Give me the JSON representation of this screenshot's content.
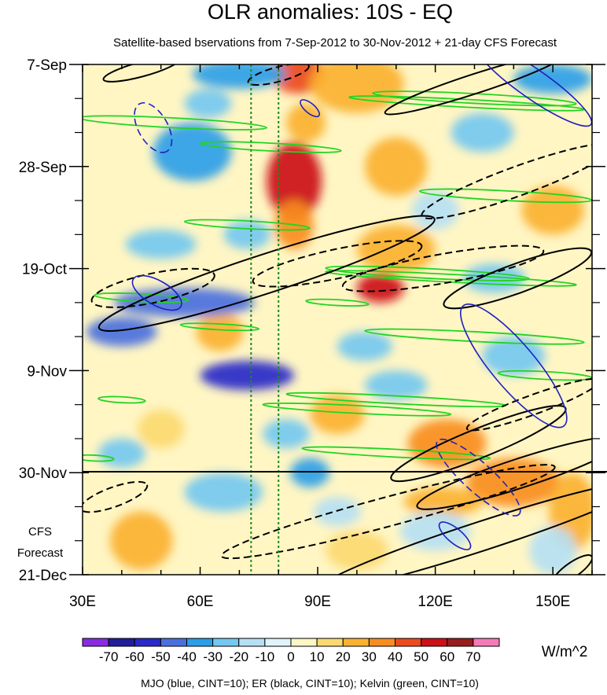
{
  "chart_data": {
    "type": "heatmap",
    "title": "OLR anomalies: 10S - EQ",
    "subtitle": "Satellite-based bservations from 7-Sep-2012 to 30-Nov-2012 + 21-day CFS Forecast",
    "x_range": [
      30,
      160
    ],
    "x_ticks": [
      {
        "value": 30,
        "label": "30E"
      },
      {
        "value": 60,
        "label": "60E"
      },
      {
        "value": 90,
        "label": "90E"
      },
      {
        "value": 120,
        "label": "120E"
      },
      {
        "value": 150,
        "label": "150E"
      }
    ],
    "y_range_days": [
      0,
      105
    ],
    "y_ticks": [
      {
        "day": 0,
        "label": "7-Sep"
      },
      {
        "day": 21,
        "label": "28-Sep"
      },
      {
        "day": 42,
        "label": "19-Oct"
      },
      {
        "day": 63,
        "label": "9-Nov"
      },
      {
        "day": 84,
        "label": "30-Nov"
      },
      {
        "day": 105,
        "label": "21-Dec"
      }
    ],
    "forecast_start_day": 84,
    "forecast_label": [
      "CFS",
      "Forecast"
    ],
    "reference_longitudes": [
      73,
      80
    ],
    "units": "W/m^2",
    "colorbar": {
      "levels": [
        -70,
        -60,
        -50,
        -40,
        -30,
        -20,
        -10,
        0,
        10,
        20,
        30,
        40,
        50,
        60,
        70
      ],
      "labels": [
        "-70",
        "-60",
        "-50",
        "-40",
        "-30",
        "-20",
        "-10",
        "0",
        "10",
        "20",
        "30",
        "40",
        "50",
        "60",
        "70"
      ],
      "colors": [
        "#8a2be2",
        "#1f1f9a",
        "#2929c9",
        "#4a6fdd",
        "#2a9ee8",
        "#74c8f0",
        "#b6dff3",
        "#dff4f9",
        "#fff6c4",
        "#fcd970",
        "#fbb130",
        "#f98d1f",
        "#ec4a1e",
        "#cc1118",
        "#9a1d1d",
        "#f57ab9"
      ]
    },
    "contour_legend": "MJO (blue, CINT=10); ER (black, CINT=10); Kelvin (green, CINT=10)",
    "anomaly_features": [
      {
        "lon": 85,
        "day": 2,
        "rlon": 7,
        "rday": 4,
        "value": 45
      },
      {
        "lon": 84,
        "day": 24,
        "rlon": 7,
        "rday": 8,
        "value": 58
      },
      {
        "lon": 87,
        "day": 12,
        "rlon": 5,
        "rday": 4,
        "value": 28
      },
      {
        "lon": 84,
        "day": 33,
        "rlon": 5,
        "rday": 5,
        "value": 38
      },
      {
        "lon": 106,
        "day": 46,
        "rlon": 6,
        "rday": 3,
        "value": 55
      },
      {
        "lon": 100,
        "day": 4,
        "rlon": 12,
        "rday": 6,
        "value": 26
      },
      {
        "lon": 123,
        "day": 78,
        "rlon": 10,
        "rday": 5,
        "value": 32
      },
      {
        "lon": 140,
        "day": 86,
        "rlon": 12,
        "rday": 5,
        "value": 30
      },
      {
        "lon": 155,
        "day": 92,
        "rlon": 6,
        "rday": 8,
        "value": 26
      },
      {
        "lon": 122,
        "day": 90,
        "rlon": 10,
        "rday": 3,
        "value": 26
      },
      {
        "lon": 110,
        "day": 21,
        "rlon": 8,
        "rday": 6,
        "value": 20
      },
      {
        "lon": 110,
        "day": 38,
        "rlon": 10,
        "rday": 5,
        "value": 22
      },
      {
        "lon": 65,
        "day": 55,
        "rlon": 6,
        "rday": 4,
        "value": 24
      },
      {
        "lon": 95,
        "day": 72,
        "rlon": 7,
        "rday": 4,
        "value": 20
      },
      {
        "lon": 45,
        "day": 98,
        "rlon": 8,
        "rday": 6,
        "value": 20
      },
      {
        "lon": 150,
        "day": 30,
        "rlon": 8,
        "rday": 5,
        "value": 20
      },
      {
        "lon": 100,
        "day": 100,
        "rlon": 8,
        "rday": 4,
        "value": 15
      },
      {
        "lon": 50,
        "day": 75,
        "rlon": 6,
        "rday": 4,
        "value": 18
      },
      {
        "lon": 56,
        "day": 49,
        "rlon": 18,
        "rday": 3,
        "value": -48
      },
      {
        "lon": 72,
        "day": 64,
        "rlon": 12,
        "rday": 3,
        "value": -52
      },
      {
        "lon": 40,
        "day": 55,
        "rlon": 9,
        "rday": 3,
        "value": -45
      },
      {
        "lon": 58,
        "day": 18,
        "rlon": 10,
        "rday": 6,
        "value": -35
      },
      {
        "lon": 70,
        "day": 2,
        "rlon": 12,
        "rday": 3,
        "value": -40
      },
      {
        "lon": 150,
        "day": 3,
        "rlon": 10,
        "rday": 3,
        "value": -35
      },
      {
        "lon": 50,
        "day": 37,
        "rlon": 9,
        "rday": 3,
        "value": -30
      },
      {
        "lon": 88,
        "day": 84,
        "rlon": 5,
        "rday": 3,
        "value": -40
      },
      {
        "lon": 110,
        "day": 66,
        "rlon": 8,
        "rday": 3,
        "value": -30
      },
      {
        "lon": 140,
        "day": 60,
        "rlon": 8,
        "rday": 4,
        "value": -30
      },
      {
        "lon": 66,
        "day": 88,
        "rlon": 10,
        "rday": 4,
        "value": -30
      },
      {
        "lon": 40,
        "day": 80,
        "rlon": 6,
        "rday": 3,
        "value": -30
      },
      {
        "lon": 72,
        "day": 35,
        "rlon": 6,
        "rday": 3,
        "value": -25
      },
      {
        "lon": 132,
        "day": 14,
        "rlon": 8,
        "rday": 4,
        "value": -25
      },
      {
        "lon": 135,
        "day": 44,
        "rlon": 8,
        "rday": 3,
        "value": -25
      },
      {
        "lon": 102,
        "day": 58,
        "rlon": 7,
        "rday": 3,
        "value": -22
      },
      {
        "lon": 82,
        "day": 76,
        "rlon": 6,
        "rday": 3,
        "value": -22
      },
      {
        "lon": 150,
        "day": 100,
        "rlon": 6,
        "rday": 5,
        "value": -20
      },
      {
        "lon": 120,
        "day": 96,
        "rlon": 9,
        "rday": 4,
        "value": -18
      },
      {
        "lon": 95,
        "day": 92,
        "rlon": 6,
        "rday": 3,
        "value": -20
      },
      {
        "lon": 120,
        "day": 30,
        "rlon": 6,
        "rday": 4,
        "value": -18
      },
      {
        "lon": 62,
        "day": 8,
        "rlon": 6,
        "rday": 3,
        "value": -25
      }
    ],
    "mjo_contours": [
      {
        "style": "dashed",
        "center": [
          48,
          13
        ],
        "radii": [
          7,
          3
        ],
        "angle": 60
      },
      {
        "style": "solid",
        "center": [
          49,
          47
        ],
        "radii": [
          7,
          2.5
        ],
        "angle": 30
      },
      {
        "style": "solid",
        "center": [
          140,
          62
        ],
        "radii": [
          20,
          4.5
        ],
        "angle": 50
      },
      {
        "style": "dashed",
        "center": [
          131,
          85
        ],
        "radii": [
          14,
          3
        ],
        "angle": 42
      },
      {
        "style": "solid",
        "center": [
          125,
          97
        ],
        "radii": [
          5,
          1.5
        ],
        "angle": 40
      },
      {
        "style": "solid",
        "center": [
          88,
          9
        ],
        "radii": [
          3,
          1
        ],
        "angle": 40
      },
      {
        "style": "solid",
        "center": [
          145,
          4
        ],
        "radii": [
          18,
          3
        ],
        "angle": 35
      }
    ],
    "er_contours": [
      {
        "style": "solid",
        "center": [
          77,
          43
        ],
        "radii": [
          45,
          4
        ],
        "angle": -18
      },
      {
        "style": "dashed",
        "center": [
          48,
          46
        ],
        "radii": [
          16,
          3
        ],
        "angle": -12
      },
      {
        "style": "dashed",
        "center": [
          95,
          41
        ],
        "radii": [
          22,
          3
        ],
        "angle": -12
      },
      {
        "style": "dashed",
        "center": [
          122,
          42
        ],
        "radii": [
          26,
          3
        ],
        "angle": -10
      },
      {
        "style": "solid",
        "center": [
          141,
          44
        ],
        "radii": [
          20,
          3
        ],
        "angle": -20
      },
      {
        "style": "dashed",
        "center": [
          141,
          24
        ],
        "radii": [
          26,
          3
        ],
        "angle": -20
      },
      {
        "style": "solid",
        "center": [
          131,
          78
        ],
        "radii": [
          24,
          3
        ],
        "angle": -22
      },
      {
        "style": "solid",
        "center": [
          142,
          84
        ],
        "radii": [
          28,
          3
        ],
        "angle": -18
      },
      {
        "style": "dashed",
        "center": [
          108,
          92
        ],
        "radii": [
          44,
          3
        ],
        "angle": -15
      },
      {
        "style": "solid",
        "center": [
          132,
          97
        ],
        "radii": [
          44,
          3
        ],
        "angle": -18
      },
      {
        "style": "dashed",
        "center": [
          38,
          89
        ],
        "radii": [
          9,
          2
        ],
        "angle": -20
      },
      {
        "style": "solid",
        "center": [
          155,
          104
        ],
        "radii": [
          6,
          1.5
        ],
        "angle": -35
      },
      {
        "style": "solid",
        "center": [
          130,
          4
        ],
        "radii": [
          24,
          2
        ],
        "angle": -18
      },
      {
        "style": "solid",
        "center": [
          45,
          1
        ],
        "radii": [
          10,
          1.5
        ],
        "angle": -15
      },
      {
        "style": "dashed",
        "center": [
          80,
          2
        ],
        "radii": [
          8,
          1.5
        ],
        "angle": -15
      },
      {
        "style": "dashed",
        "center": [
          145,
          70
        ],
        "radii": [
          18,
          2
        ],
        "angle": -20
      }
    ],
    "kelvin_contours": [
      {
        "center": [
          53,
          12
        ],
        "radii": [
          24,
          1
        ],
        "angle": 3
      },
      {
        "center": [
          78,
          17
        ],
        "radii": [
          18,
          0.8
        ],
        "angle": 3
      },
      {
        "center": [
          130,
          7
        ],
        "radii": [
          26,
          1
        ],
        "angle": 3
      },
      {
        "center": [
          128,
          8
        ],
        "radii": [
          30,
          0.8
        ],
        "angle": 3
      },
      {
        "center": [
          138,
          27
        ],
        "radii": [
          22,
          1
        ],
        "angle": 3
      },
      {
        "center": [
          72,
          33
        ],
        "radii": [
          16,
          0.8
        ],
        "angle": 3
      },
      {
        "center": [
          118,
          43
        ],
        "radii": [
          26,
          1
        ],
        "angle": 3
      },
      {
        "center": [
          124,
          44
        ],
        "radii": [
          32,
          0.8
        ],
        "angle": 3
      },
      {
        "center": [
          45,
          48
        ],
        "radii": [
          12,
          0.8
        ],
        "angle": 3
      },
      {
        "center": [
          130,
          56
        ],
        "radii": [
          28,
          1
        ],
        "angle": 3
      },
      {
        "center": [
          110,
          69
        ],
        "radii": [
          28,
          0.8
        ],
        "angle": 3
      },
      {
        "center": [
          100,
          71
        ],
        "radii": [
          24,
          0.8
        ],
        "angle": 3
      },
      {
        "center": [
          148,
          64
        ],
        "radii": [
          12,
          0.8
        ],
        "angle": 3
      },
      {
        "center": [
          40,
          69
        ],
        "radii": [
          6,
          0.6
        ],
        "angle": 3
      },
      {
        "center": [
          110,
          80
        ],
        "radii": [
          24,
          0.8
        ],
        "angle": 3
      },
      {
        "center": [
          33,
          81
        ],
        "radii": [
          5,
          0.6
        ],
        "angle": 3
      },
      {
        "center": [
          95,
          49
        ],
        "radii": [
          8,
          0.6
        ],
        "angle": 3
      },
      {
        "center": [
          65,
          54
        ],
        "radii": [
          10,
          0.6
        ],
        "angle": 3
      }
    ]
  }
}
